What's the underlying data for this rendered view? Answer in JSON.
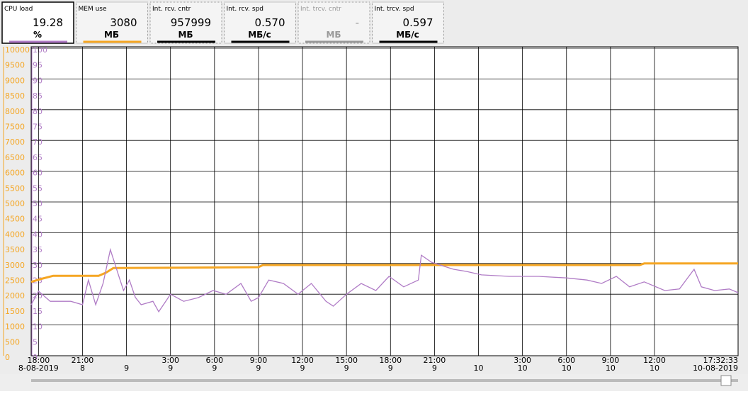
{
  "panels": [
    {
      "title": "CPU load",
      "value": "19.28",
      "unit": "%",
      "color": "#b07cc6"
    },
    {
      "title": "MEM use",
      "value": "3080",
      "unit": "МБ",
      "color": "#f5a623"
    },
    {
      "title": "Int. rcv. cntr",
      "value": "957999",
      "unit": "МБ",
      "color": "#000000"
    },
    {
      "title": "Int. rcv. spd",
      "value": "0.570",
      "unit": "МБ/с",
      "color": "#000000"
    },
    {
      "title": "Int. trcv. cntr",
      "value": "-",
      "unit": "МБ",
      "color": "#999999"
    },
    {
      "title": "Int. trcv. spd",
      "value": "0.597",
      "unit": "МБ/с",
      "color": "#000000"
    }
  ],
  "chart_data": {
    "type": "line",
    "xlim": [
      -0.5,
      47.7
    ],
    "xticks": [
      {
        "value": 0,
        "label": "18:00",
        "date": "8-08-2019"
      },
      {
        "value": 3,
        "label": "21:00",
        "date": "8"
      },
      {
        "value": 6,
        "label": null,
        "date": "9"
      },
      {
        "value": 9,
        "label": "3:00",
        "date": "9"
      },
      {
        "value": 12,
        "label": "6:00",
        "date": "9"
      },
      {
        "value": 15,
        "label": "9:00",
        "date": "9"
      },
      {
        "value": 18,
        "label": "12:00",
        "date": "9"
      },
      {
        "value": 21,
        "label": "15:00",
        "date": "9"
      },
      {
        "value": 24,
        "label": "18:00",
        "date": "9"
      },
      {
        "value": 27,
        "label": "21:00",
        "date": "9"
      },
      {
        "value": 30,
        "label": null,
        "date": "10"
      },
      {
        "value": 33,
        "label": "3:00",
        "date": "10"
      },
      {
        "value": 36,
        "label": "6:00",
        "date": "10"
      },
      {
        "value": 39,
        "label": "9:00",
        "date": "10"
      },
      {
        "value": 42,
        "label": "12:00",
        "date": "10"
      },
      {
        "value": 47.54,
        "label": "17:32:33",
        "date": "10-08-2019"
      }
    ],
    "ylim": [
      0,
      10000
    ],
    "yticks": [
      0,
      500,
      1000,
      1500,
      2000,
      2500,
      3000,
      3500,
      4000,
      4500,
      5000,
      5500,
      6000,
      6500,
      7000,
      7500,
      8000,
      8500,
      9000,
      9500,
      10000
    ],
    "y2lim": [
      0,
      100
    ],
    "y2ticks": [
      0,
      5,
      10,
      15,
      20,
      25,
      30,
      35,
      40,
      45,
      50,
      55,
      60,
      65,
      70,
      75,
      80,
      85,
      90,
      95,
      100
    ],
    "grid": true,
    "series": [
      {
        "name": "MEM use",
        "color": "#f5a623",
        "x": [
          -0.5,
          0.2,
          1.0,
          4.1,
          4.6,
          5.1,
          15.0,
          15.3,
          26.3,
          41.0,
          41.3,
          47.7
        ],
        "values": [
          2400,
          2500,
          2600,
          2600,
          2700,
          2850,
          2880,
          2950,
          2950,
          2950,
          3000,
          3000
        ]
      },
      {
        "name": "CPU load",
        "color": "#b07cc6",
        "axis": "y2",
        "x": [
          -0.5,
          0.0,
          0.8,
          2.2,
          3.0,
          3.4,
          3.9,
          4.4,
          4.9,
          5.4,
          5.8,
          6.2,
          6.6,
          7.0,
          7.8,
          8.2,
          9.0,
          9.9,
          10.9,
          11.9,
          12.8,
          13.8,
          14.5,
          15.0,
          15.7,
          16.7,
          17.7,
          18.6,
          19.6,
          20.1,
          21.0,
          22.0,
          23.0,
          23.9,
          24.9,
          25.9,
          26.1,
          26.8,
          27.5,
          28.3,
          29.2,
          30.2,
          32.1,
          34.1,
          36.0,
          37.4,
          38.4,
          39.4,
          40.3,
          41.3,
          42.7,
          43.7,
          44.7,
          45.2,
          46.1,
          47.1,
          47.7
        ],
        "values": [
          16.6,
          21,
          17.7,
          17.7,
          16.6,
          24.6,
          16.6,
          23.5,
          34.5,
          27,
          21.2,
          24.6,
          19,
          16.6,
          17.7,
          14.3,
          20,
          17.7,
          18.9,
          21.2,
          20,
          23.5,
          17.7,
          18.9,
          24.6,
          23.5,
          20,
          23.5,
          17.7,
          16.1,
          20,
          23.5,
          21.2,
          25.8,
          22.4,
          24.6,
          32.7,
          30.4,
          29.3,
          28.1,
          27.4,
          26.3,
          25.8,
          25.8,
          25.3,
          24.6,
          23.5,
          25.8,
          22.4,
          24,
          21.2,
          21.7,
          28.1,
          22.4,
          21.2,
          21.7,
          20.5
        ]
      }
    ]
  }
}
